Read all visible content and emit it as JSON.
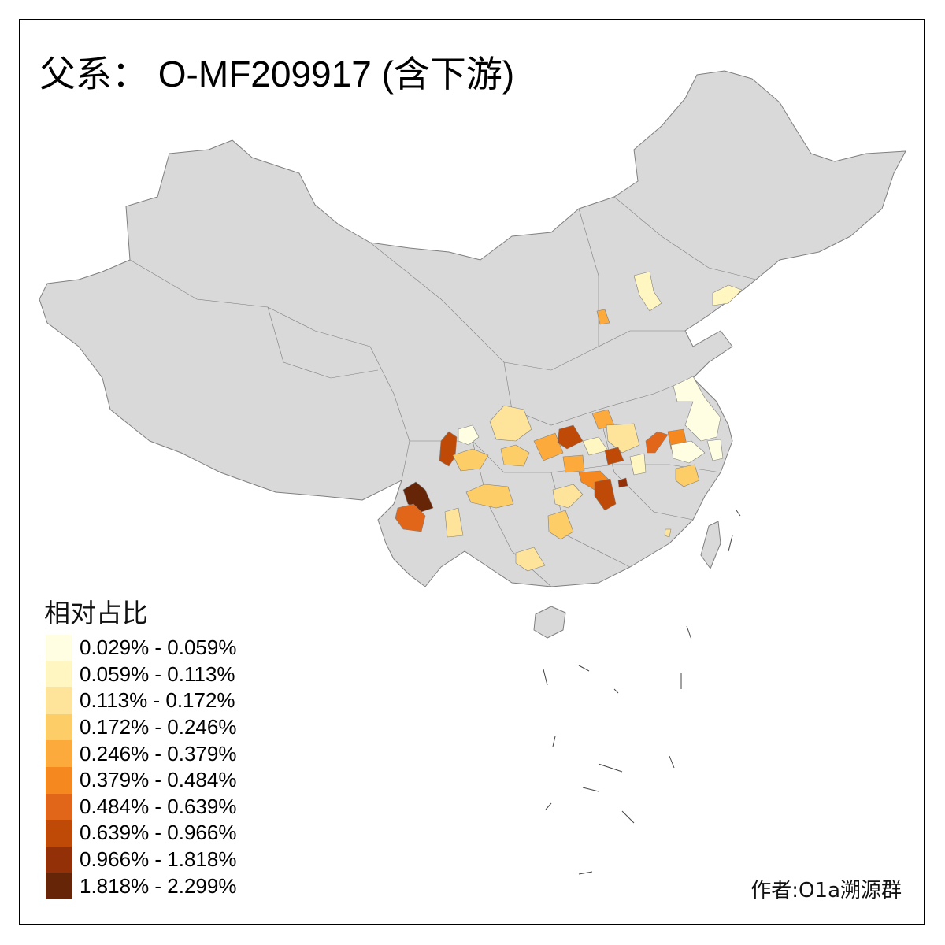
{
  "title": "父系： O-MF209917 (含下游)",
  "legend": {
    "title": "相对占比",
    "items": [
      {
        "label": "0.029% - 0.059%",
        "color": "#FFFEE3"
      },
      {
        "label": "0.059% - 0.113%",
        "color": "#FFF6C1"
      },
      {
        "label": "0.113% - 0.172%",
        "color": "#FEE49A"
      },
      {
        "label": "0.172% - 0.246%",
        "color": "#FDCD68"
      },
      {
        "label": "0.246% - 0.379%",
        "color": "#FCAA3C"
      },
      {
        "label": "0.379% - 0.484%",
        "color": "#F5891F"
      },
      {
        "label": "0.484% - 0.639%",
        "color": "#E2661A"
      },
      {
        "label": "0.639% - 0.966%",
        "color": "#BF4A08"
      },
      {
        "label": "0.966% - 1.818%",
        "color": "#933008"
      },
      {
        "label": "1.818% - 2.299%",
        "color": "#662506"
      }
    ]
  },
  "map": {
    "base_color": "#D9D9D9",
    "border_color": "#7f7f7f"
  },
  "author": "作者:O1a溯源群"
}
